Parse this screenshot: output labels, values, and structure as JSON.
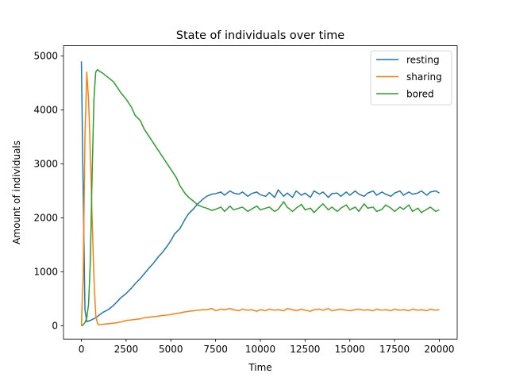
{
  "chart_data": {
    "type": "line",
    "title": "State of individuals over time",
    "xlabel": "Time",
    "ylabel": "Amount of individuals",
    "xlim": [
      -1000,
      21000
    ],
    "ylim": [
      -245,
      5190
    ],
    "xticks": [
      0,
      2500,
      5000,
      7500,
      10000,
      12500,
      15000,
      17500,
      20000
    ],
    "yticks": [
      0,
      1000,
      2000,
      3000,
      4000,
      5000
    ],
    "legend": "top-right",
    "grid": false,
    "series": [
      {
        "name": "resting",
        "color": "#1f77b4",
        "x": [
          0,
          100,
          200,
          300,
          500,
          800,
          1000,
          1200,
          1500,
          1800,
          2000,
          2200,
          2500,
          2800,
          3000,
          3300,
          3500,
          3800,
          4000,
          4300,
          4500,
          4800,
          5000,
          5200,
          5500,
          5800,
          6000,
          6300,
          6500,
          6800,
          7000,
          7300,
          7500,
          7800,
          8000,
          8300,
          8500,
          8800,
          9000,
          9300,
          9500,
          9800,
          10000,
          10300,
          10500,
          10800,
          11000,
          11300,
          11500,
          11800,
          12000,
          12300,
          12500,
          12800,
          13000,
          13300,
          13500,
          13800,
          14000,
          14300,
          14500,
          14800,
          15000,
          15300,
          15500,
          15800,
          16000,
          16300,
          16500,
          16800,
          17000,
          17300,
          17500,
          17800,
          18000,
          18300,
          18500,
          18800,
          19000,
          19300,
          19500,
          19800,
          20000
        ],
        "values": [
          4900,
          2500,
          300,
          80,
          100,
          150,
          200,
          250,
          300,
          380,
          450,
          520,
          600,
          700,
          780,
          880,
          960,
          1080,
          1150,
          1280,
          1350,
          1480,
          1580,
          1700,
          1800,
          1980,
          2080,
          2180,
          2260,
          2350,
          2400,
          2440,
          2450,
          2480,
          2420,
          2500,
          2460,
          2440,
          2480,
          2400,
          2450,
          2480,
          2430,
          2400,
          2470,
          2380,
          2520,
          2400,
          2460,
          2380,
          2500,
          2420,
          2460,
          2380,
          2500,
          2440,
          2480,
          2380,
          2450,
          2460,
          2400,
          2480,
          2420,
          2500,
          2440,
          2400,
          2460,
          2500,
          2420,
          2480,
          2440,
          2400,
          2460,
          2500,
          2420,
          2480,
          2440,
          2460,
          2500,
          2420,
          2480,
          2500,
          2460
        ]
      },
      {
        "name": "sharing",
        "color": "#ff7f0e",
        "x": [
          0,
          100,
          200,
          300,
          400,
          500,
          600,
          700,
          800,
          900,
          1000,
          1200,
          1500,
          1800,
          2000,
          2300,
          2500,
          2800,
          3000,
          3300,
          3500,
          3800,
          4000,
          4300,
          4500,
          4800,
          5000,
          5300,
          5500,
          5800,
          6000,
          6300,
          6500,
          6800,
          7000,
          7300,
          7500,
          7800,
          8000,
          8300,
          8500,
          8800,
          9000,
          9300,
          9500,
          9800,
          10000,
          10300,
          10500,
          10800,
          11000,
          11300,
          11500,
          11800,
          12000,
          12300,
          12500,
          12800,
          13000,
          13300,
          13500,
          13800,
          14000,
          14300,
          14500,
          14800,
          15000,
          15300,
          15500,
          15800,
          16000,
          16300,
          16500,
          16800,
          17000,
          17300,
          17500,
          17800,
          18000,
          18300,
          18500,
          18800,
          19000,
          19300,
          19500,
          19800,
          20000
        ],
        "values": [
          0,
          900,
          3500,
          4700,
          4200,
          3200,
          2000,
          900,
          200,
          40,
          20,
          30,
          40,
          50,
          60,
          80,
          100,
          110,
          120,
          130,
          150,
          160,
          170,
          180,
          190,
          200,
          210,
          230,
          240,
          260,
          270,
          280,
          290,
          300,
          300,
          320,
          280,
          310,
          300,
          320,
          300,
          280,
          310,
          290,
          300,
          270,
          300,
          280,
          310,
          290,
          300,
          280,
          320,
          300,
          280,
          310,
          290,
          270,
          300,
          310,
          290,
          320,
          280,
          300,
          310,
          290,
          280,
          300,
          310,
          290,
          300,
          280,
          310,
          290,
          300,
          280,
          310,
          290,
          300,
          280,
          310,
          290,
          300,
          280,
          310,
          290,
          300
        ]
      },
      {
        "name": "bored",
        "color": "#2ca02c",
        "x": [
          0,
          100,
          200,
          300,
          400,
          500,
          600,
          700,
          800,
          900,
          1000,
          1200,
          1500,
          1800,
          2000,
          2200,
          2500,
          2800,
          3000,
          3300,
          3500,
          3800,
          4000,
          4300,
          4500,
          4800,
          5000,
          5300,
          5500,
          5800,
          6000,
          6300,
          6500,
          6800,
          7000,
          7300,
          7500,
          7800,
          8000,
          8300,
          8500,
          8800,
          9000,
          9300,
          9500,
          9800,
          10000,
          10300,
          10500,
          10800,
          11000,
          11300,
          11500,
          11800,
          12000,
          12300,
          12500,
          12800,
          13000,
          13300,
          13500,
          13800,
          14000,
          14300,
          14500,
          14800,
          15000,
          15300,
          15500,
          15800,
          16000,
          16300,
          16500,
          16800,
          17000,
          17300,
          17500,
          17800,
          18000,
          18300,
          18500,
          18800,
          19000,
          19300,
          19500,
          19800,
          20000
        ],
        "values": [
          0,
          20,
          60,
          150,
          400,
          1200,
          2800,
          4200,
          4700,
          4750,
          4720,
          4680,
          4600,
          4520,
          4420,
          4320,
          4200,
          4050,
          3900,
          3800,
          3650,
          3500,
          3400,
          3250,
          3150,
          3000,
          2900,
          2750,
          2600,
          2450,
          2380,
          2300,
          2240,
          2200,
          2180,
          2140,
          2160,
          2200,
          2120,
          2220,
          2150,
          2180,
          2200,
          2120,
          2160,
          2220,
          2150,
          2180,
          2200,
          2120,
          2160,
          2300,
          2200,
          2120,
          2180,
          2250,
          2150,
          2180,
          2100,
          2200,
          2260,
          2150,
          2200,
          2120,
          2180,
          2240,
          2150,
          2200,
          2120,
          2260,
          2180,
          2200,
          2120,
          2160,
          2240,
          2180,
          2120,
          2200,
          2160,
          2240,
          2120,
          2180,
          2100,
          2160,
          2200,
          2120,
          2150
        ]
      }
    ]
  }
}
